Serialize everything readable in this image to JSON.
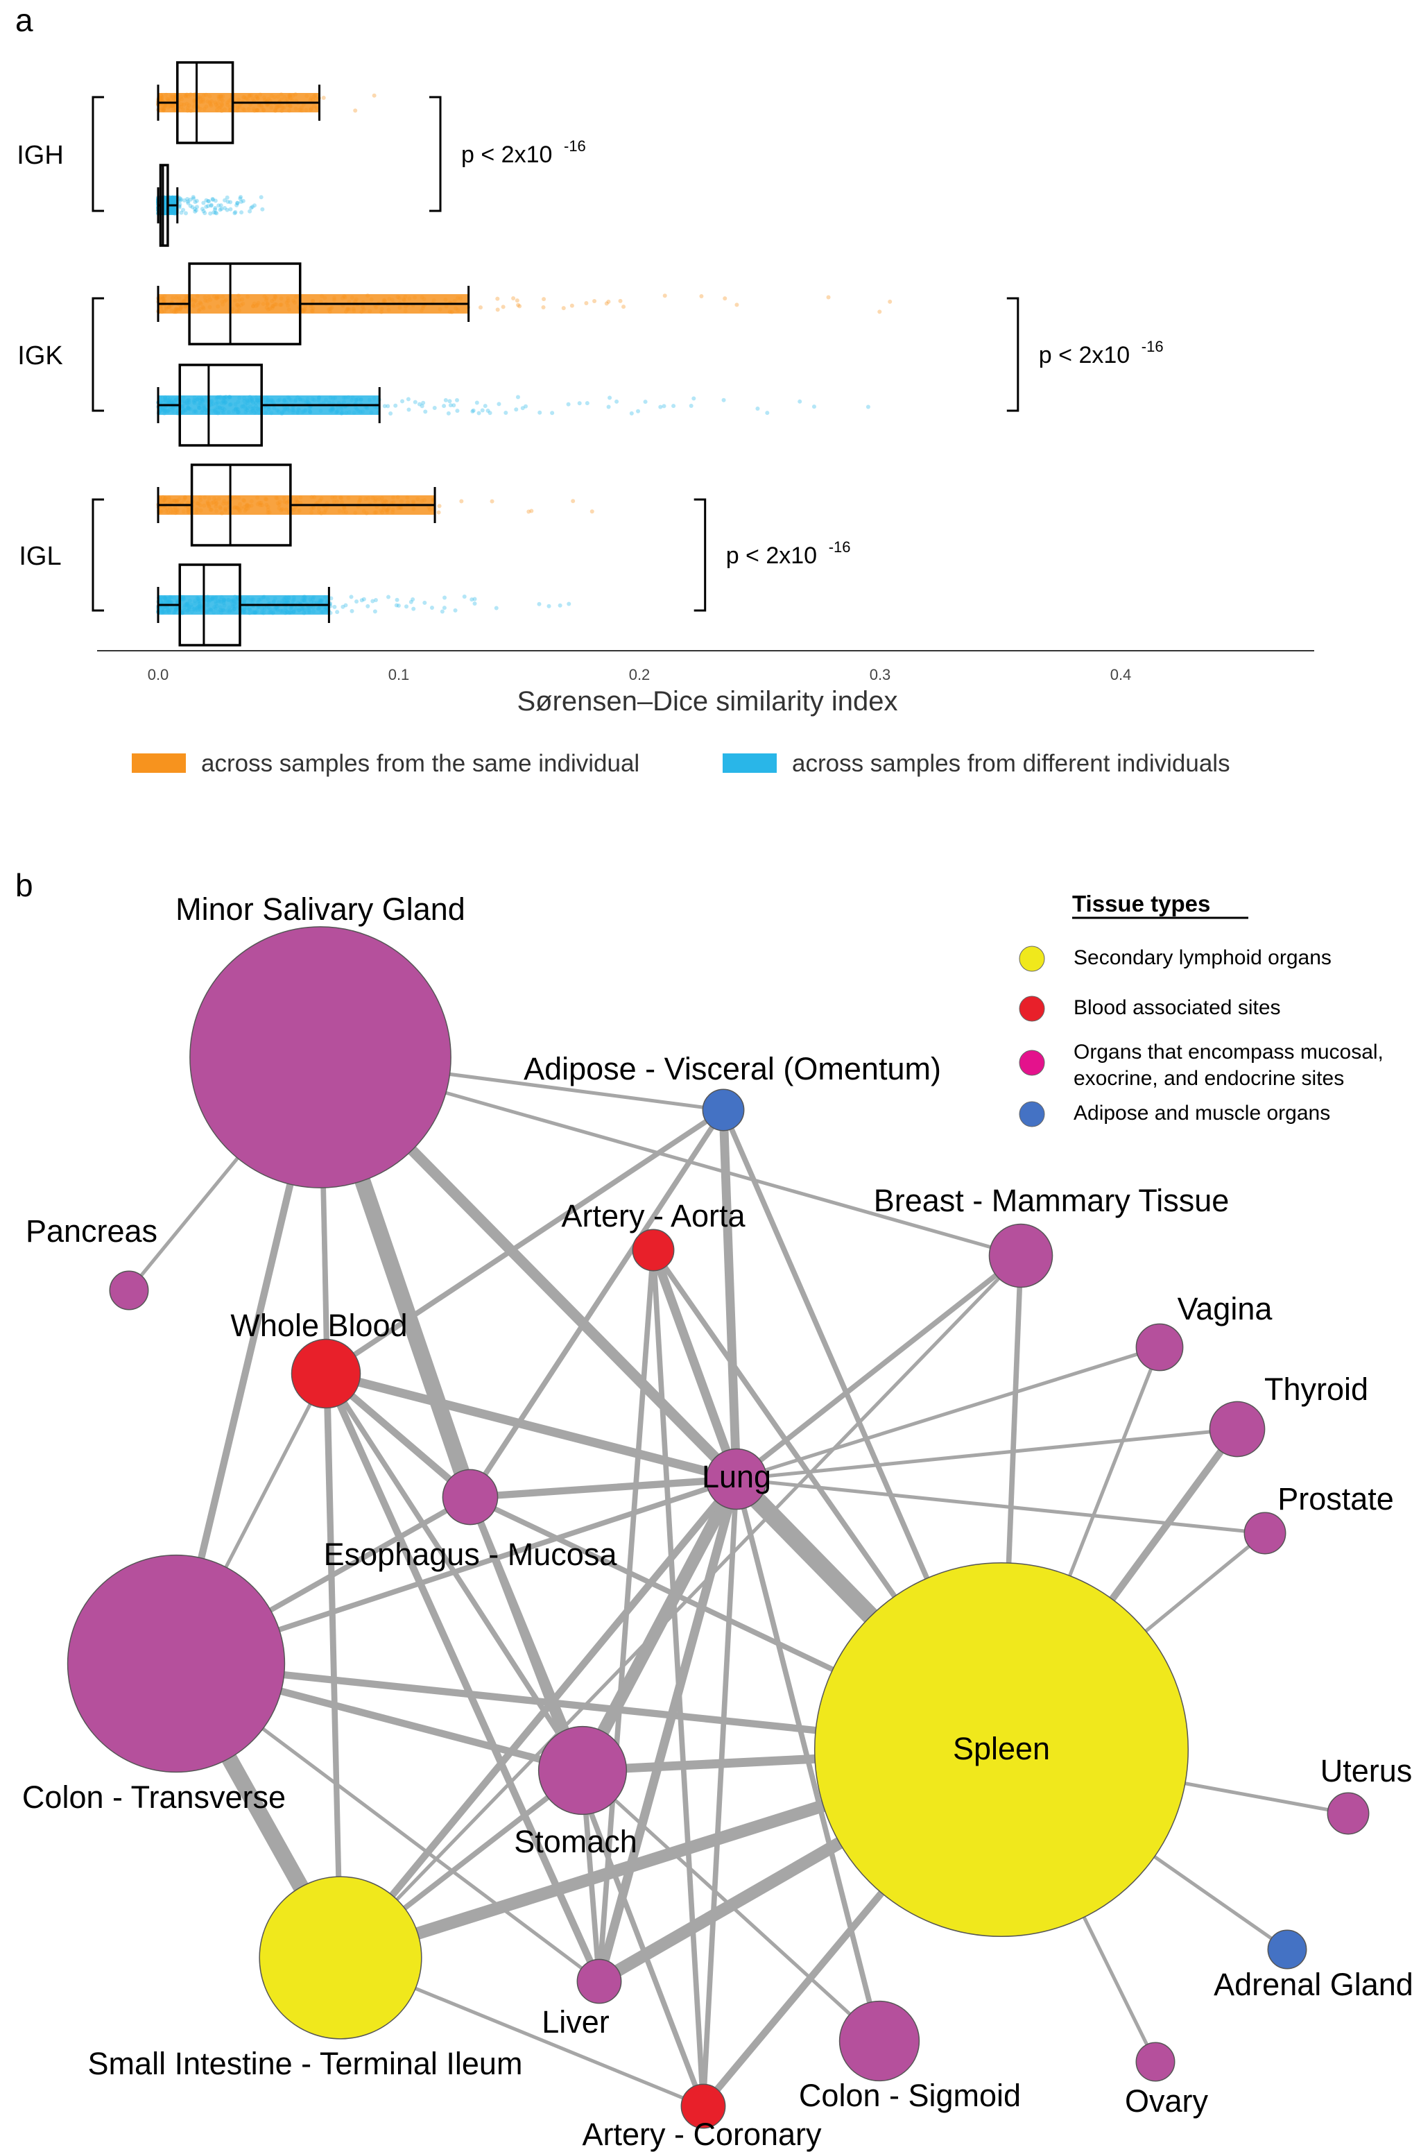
{
  "colors": {
    "same": "#F7931E",
    "different": "#29B6E8",
    "edge": "#A6A6A6",
    "yellow": "#F0E81C",
    "red": "#E8202A",
    "purple": "#B5509C",
    "magenta": "#E4128C",
    "blue": "#4472C4"
  },
  "panel_a": {
    "label": "a",
    "chart_data": {
      "type": "boxplot",
      "xlabel": "Sørensen–Dice similarity index",
      "xlim": [
        0.0,
        0.45
      ],
      "ticks": [
        {
          "value": 0.0,
          "label": "0.0"
        },
        {
          "value": 0.1,
          "label": "0.1"
        },
        {
          "value": 0.2,
          "label": "0.2"
        },
        {
          "value": 0.3,
          "label": "0.3"
        },
        {
          "value": 0.4,
          "label": "0.4"
        }
      ],
      "legend": [
        {
          "key": "same",
          "label": "across samples from the same individual"
        },
        {
          "key": "different",
          "label": "across samples from different individuals"
        }
      ],
      "groups": [
        {
          "name": "IGH",
          "p_text": "p < 2x10",
          "p_exp": "-16",
          "boxes": [
            {
              "series": "same",
              "min": 0.0,
              "q1": 0.008,
              "median": 0.016,
              "q3": 0.031,
              "max": 0.067,
              "points_max": 0.1
            },
            {
              "series": "different",
              "min": 0.0,
              "q1": 0.001,
              "median": 0.002,
              "q3": 0.004,
              "max": 0.008,
              "points_max": 0.05
            }
          ]
        },
        {
          "name": "IGK",
          "p_text": "p < 2x10",
          "p_exp": "-16",
          "boxes": [
            {
              "series": "same",
              "min": 0.0,
              "q1": 0.013,
              "median": 0.03,
              "q3": 0.059,
              "max": 0.129,
              "points_max": 0.34
            },
            {
              "series": "different",
              "min": 0.0,
              "q1": 0.009,
              "median": 0.021,
              "q3": 0.043,
              "max": 0.092,
              "points_max": 0.3
            }
          ]
        },
        {
          "name": "IGL",
          "p_text": "p < 2x10",
          "p_exp": "-16",
          "boxes": [
            {
              "series": "same",
              "min": 0.0,
              "q1": 0.014,
              "median": 0.03,
              "q3": 0.055,
              "max": 0.115,
              "points_max": 0.2
            },
            {
              "series": "different",
              "min": 0.0,
              "q1": 0.009,
              "median": 0.019,
              "q3": 0.034,
              "max": 0.071,
              "points_max": 0.21
            }
          ]
        }
      ]
    }
  },
  "panel_b": {
    "label": "b",
    "legend_title": "Tissue types",
    "legend": [
      {
        "key": "yellow",
        "label_lines": [
          "Secondary lymphoid organs"
        ]
      },
      {
        "key": "red",
        "label_lines": [
          "Blood associated sites"
        ]
      },
      {
        "key": "magenta",
        "label_lines": [
          "Organs that encompass mucosal,",
          "exocrine, and endocrine sites"
        ]
      },
      {
        "key": "blue",
        "label_lines": [
          "Adipose and muscle organs"
        ]
      }
    ],
    "chart_data": {
      "type": "network",
      "nodes": [
        {
          "id": "minor_salivary_gland",
          "label": "Minor Salivary Gland",
          "category": "purple",
          "size": 95
        },
        {
          "id": "adipose_visceral",
          "label": "Adipose - Visceral (Omentum)",
          "category": "blue",
          "size": 15
        },
        {
          "id": "pancreas",
          "label": "Pancreas",
          "category": "purple",
          "size": 14
        },
        {
          "id": "artery_aorta",
          "label": "Artery - Aorta",
          "category": "red",
          "size": 15
        },
        {
          "id": "breast",
          "label": "Breast - Mammary Tissue",
          "category": "purple",
          "size": 23
        },
        {
          "id": "whole_blood",
          "label": "Whole Blood",
          "category": "red",
          "size": 25
        },
        {
          "id": "vagina",
          "label": "Vagina",
          "category": "purple",
          "size": 17
        },
        {
          "id": "thyroid",
          "label": "Thyroid",
          "category": "purple",
          "size": 20
        },
        {
          "id": "lung",
          "label": "Lung",
          "category": "purple",
          "size": 22
        },
        {
          "id": "esophagus_mucosa",
          "label": "Esophagus - Mucosa",
          "category": "purple",
          "size": 20
        },
        {
          "id": "prostate",
          "label": "Prostate",
          "category": "purple",
          "size": 15
        },
        {
          "id": "colon_transverse",
          "label": "Colon - Transverse",
          "category": "purple",
          "size": 79
        },
        {
          "id": "spleen",
          "label": "Spleen",
          "category": "yellow",
          "size": 136
        },
        {
          "id": "stomach",
          "label": "Stomach",
          "category": "purple",
          "size": 32
        },
        {
          "id": "uterus",
          "label": "Uterus",
          "category": "purple",
          "size": 15
        },
        {
          "id": "small_intestine",
          "label": "Small Intestine - Terminal Ileum",
          "category": "yellow",
          "size": 59
        },
        {
          "id": "liver",
          "label": "Liver",
          "category": "purple",
          "size": 16
        },
        {
          "id": "adrenal_gland",
          "label": "Adrenal Gland",
          "category": "blue",
          "size": 14
        },
        {
          "id": "colon_sigmoid",
          "label": "Colon - Sigmoid",
          "category": "purple",
          "size": 29
        },
        {
          "id": "ovary",
          "label": "Ovary",
          "category": "purple",
          "size": 14
        },
        {
          "id": "artery_coronary",
          "label": "Artery - Coronary",
          "category": "red",
          "size": 16
        }
      ],
      "edges": [
        {
          "source": "minor_salivary_gland",
          "target": "pancreas",
          "weight": 1
        },
        {
          "source": "minor_salivary_gland",
          "target": "adipose_visceral",
          "weight": 1
        },
        {
          "source": "minor_salivary_gland",
          "target": "breast",
          "weight": 1
        },
        {
          "source": "minor_salivary_gland",
          "target": "lung",
          "weight": 5
        },
        {
          "source": "minor_salivary_gland",
          "target": "esophagus_mucosa",
          "weight": 8
        },
        {
          "source": "minor_salivary_gland",
          "target": "colon_transverse",
          "weight": 3
        },
        {
          "source": "minor_salivary_gland",
          "target": "whole_blood",
          "weight": 1
        },
        {
          "source": "minor_salivary_gland",
          "target": "small_intestine",
          "weight": 2
        },
        {
          "source": "adipose_visceral",
          "target": "lung",
          "weight": 4
        },
        {
          "source": "adipose_visceral",
          "target": "whole_blood",
          "weight": 2
        },
        {
          "source": "adipose_visceral",
          "target": "esophagus_mucosa",
          "weight": 2
        },
        {
          "source": "adipose_visceral",
          "target": "spleen",
          "weight": 2
        },
        {
          "source": "artery_aorta",
          "target": "lung",
          "weight": 4
        },
        {
          "source": "artery_aorta",
          "target": "spleen",
          "weight": 2
        },
        {
          "source": "artery_aorta",
          "target": "liver",
          "weight": 2
        },
        {
          "source": "artery_aorta",
          "target": "artery_coronary",
          "weight": 2
        },
        {
          "source": "breast",
          "target": "lung",
          "weight": 2
        },
        {
          "source": "breast",
          "target": "spleen",
          "weight": 2
        },
        {
          "source": "breast",
          "target": "small_intestine",
          "weight": 1
        },
        {
          "source": "vagina",
          "target": "lung",
          "weight": 1
        },
        {
          "source": "vagina",
          "target": "spleen",
          "weight": 1
        },
        {
          "source": "thyroid",
          "target": "lung",
          "weight": 1
        },
        {
          "source": "thyroid",
          "target": "spleen",
          "weight": 3
        },
        {
          "source": "prostate",
          "target": "lung",
          "weight": 1
        },
        {
          "source": "prostate",
          "target": "spleen",
          "weight": 1
        },
        {
          "source": "whole_blood",
          "target": "lung",
          "weight": 4
        },
        {
          "source": "whole_blood",
          "target": "esophagus_mucosa",
          "weight": 3
        },
        {
          "source": "whole_blood",
          "target": "stomach",
          "weight": 2
        },
        {
          "source": "whole_blood",
          "target": "liver",
          "weight": 3
        },
        {
          "source": "whole_blood",
          "target": "colon_transverse",
          "weight": 1
        },
        {
          "source": "whole_blood",
          "target": "small_intestine",
          "weight": 2
        },
        {
          "source": "esophagus_mucosa",
          "target": "lung",
          "weight": 3
        },
        {
          "source": "esophagus_mucosa",
          "target": "colon_transverse",
          "weight": 2
        },
        {
          "source": "esophagus_mucosa",
          "target": "stomach",
          "weight": 3
        },
        {
          "source": "esophagus_mucosa",
          "target": "spleen",
          "weight": 2
        },
        {
          "source": "esophagus_mucosa",
          "target": "artery_coronary",
          "weight": 2
        },
        {
          "source": "lung",
          "target": "spleen",
          "weight": 9
        },
        {
          "source": "lung",
          "target": "stomach",
          "weight": 6
        },
        {
          "source": "lung",
          "target": "liver",
          "weight": 4
        },
        {
          "source": "lung",
          "target": "small_intestine",
          "weight": 3
        },
        {
          "source": "lung",
          "target": "colon_sigmoid",
          "weight": 2
        },
        {
          "source": "lung",
          "target": "colon_transverse",
          "weight": 2
        },
        {
          "source": "lung",
          "target": "artery_coronary",
          "weight": 2
        },
        {
          "source": "colon_transverse",
          "target": "spleen",
          "weight": 3
        },
        {
          "source": "colon_transverse",
          "target": "stomach",
          "weight": 3
        },
        {
          "source": "colon_transverse",
          "target": "small_intestine",
          "weight": 8
        },
        {
          "source": "colon_transverse",
          "target": "liver",
          "weight": 1
        },
        {
          "source": "stomach",
          "target": "spleen",
          "weight": 4
        },
        {
          "source": "stomach",
          "target": "small_intestine",
          "weight": 2
        },
        {
          "source": "stomach",
          "target": "liver",
          "weight": 2
        },
        {
          "source": "small_intestine",
          "target": "spleen",
          "weight": 6
        },
        {
          "source": "small_intestine",
          "target": "artery_coronary",
          "weight": 1
        },
        {
          "source": "liver",
          "target": "spleen",
          "weight": 6
        },
        {
          "source": "spleen",
          "target": "uterus",
          "weight": 1
        },
        {
          "source": "spleen",
          "target": "adrenal_gland",
          "weight": 1
        },
        {
          "source": "spleen",
          "target": "ovary",
          "weight": 1
        },
        {
          "source": "spleen",
          "target": "artery_coronary",
          "weight": 3
        },
        {
          "source": "colon_sigmoid",
          "target": "stomach",
          "weight": 1
        }
      ]
    }
  }
}
